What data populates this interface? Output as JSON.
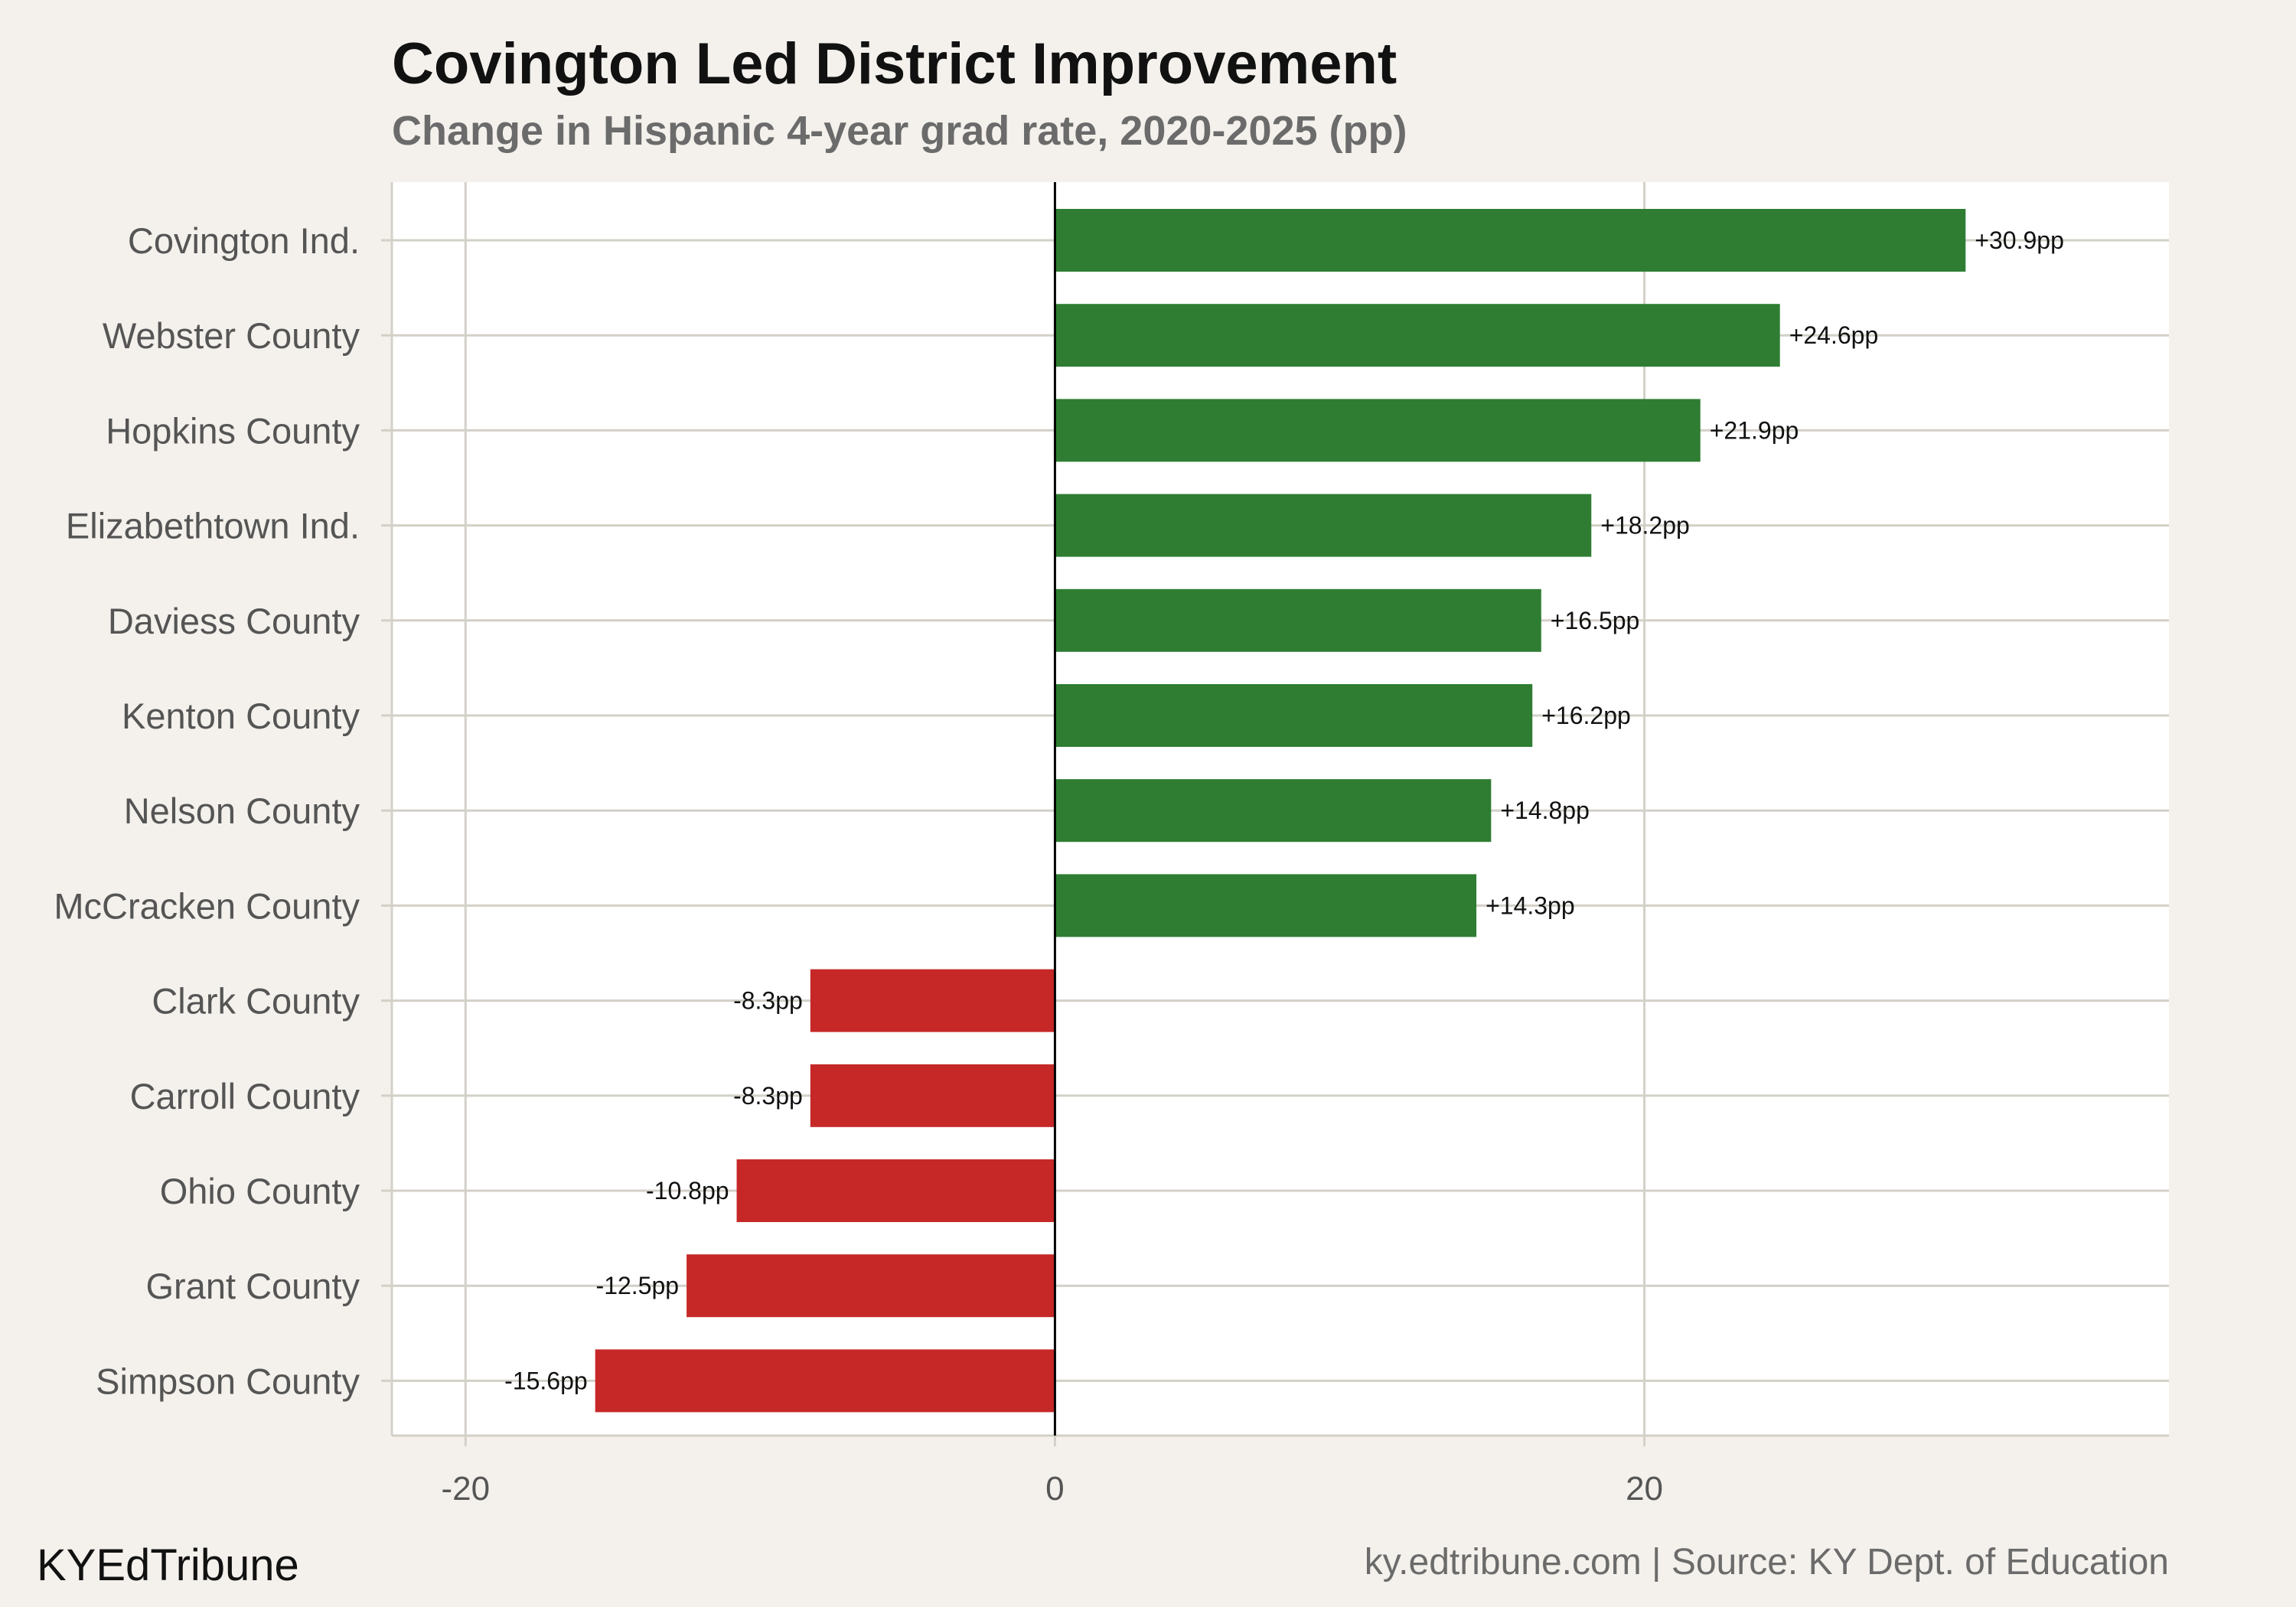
{
  "chart_data": {
    "type": "bar",
    "orientation": "horizontal",
    "title": "Covington Led District Improvement",
    "subtitle": "Change in Hispanic 4-year grad rate, 2020-2025 (pp)",
    "categories": [
      "Covington Ind.",
      "Webster County",
      "Hopkins County",
      "Elizabethtown Ind.",
      "Daviess County",
      "Kenton County",
      "Nelson County",
      "McCracken County",
      "Clark County",
      "Carroll County",
      "Ohio County",
      "Grant County",
      "Simpson County"
    ],
    "values": [
      30.9,
      24.6,
      21.9,
      18.2,
      16.5,
      16.2,
      14.8,
      14.3,
      -8.3,
      -8.3,
      -10.8,
      -12.5,
      -15.6
    ],
    "data_labels": [
      "+30.9pp",
      "+24.6pp",
      "+21.9pp",
      "+18.2pp",
      "+16.5pp",
      "+16.2pp",
      "+14.8pp",
      "+14.3pp",
      "-8.3pp",
      "-8.3pp",
      "-10.8pp",
      "-12.5pp",
      "-15.6pp"
    ],
    "xlim": [
      -22.5,
      37.8
    ],
    "xticks": [
      -20,
      0,
      20
    ],
    "xtick_labels": [
      "-20",
      "0",
      "20"
    ],
    "xlabel": "",
    "ylabel": "",
    "grid": true,
    "legend": "none",
    "colors": {
      "positive": "#2e7d32",
      "negative": "#c62828",
      "zero_line": "#000000",
      "grid": "#d3d0c7",
      "panel": "#ffffff",
      "background": "#f4f1ec"
    }
  },
  "footer": {
    "brand": "KYEdTribune",
    "source": "ky.edtribune.com | Source: KY Dept. of Education"
  }
}
